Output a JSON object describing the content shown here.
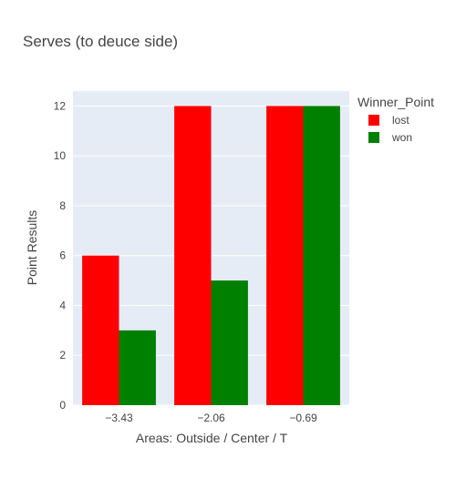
{
  "chart_data": {
    "type": "bar",
    "title": "Serves (to deuce side)",
    "xlabel": "Areas: Outside / Center / T",
    "ylabel": "Point Results",
    "categories": [
      "−3.43",
      "−2.06",
      "−0.69"
    ],
    "ylim": [
      0,
      12.6
    ],
    "yticks": [
      0,
      2,
      4,
      6,
      8,
      10,
      12
    ],
    "grid": true,
    "legend": {
      "title": "Winner_Point",
      "placement": "top-right"
    },
    "series": [
      {
        "name": "lost",
        "color": "#ff0000",
        "values": [
          6,
          12,
          12
        ]
      },
      {
        "name": "won",
        "color": "#008000",
        "values": [
          3,
          5,
          12
        ]
      }
    ]
  },
  "colors": {
    "plot_background": "#e5ecf6",
    "grid": "#ffffff",
    "text": "#444444"
  }
}
